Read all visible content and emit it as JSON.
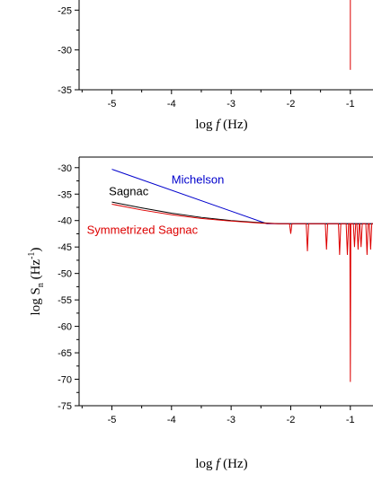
{
  "chart_data": [
    {
      "type": "line",
      "title": "",
      "xlabel": "log f (Hz)",
      "ylabel": "",
      "xlim": [
        -5.55,
        -0.62
      ],
      "ylim": [
        -35,
        -22.6
      ],
      "x_ticks": [
        -5,
        -4,
        -3,
        -2,
        -1
      ],
      "y_ticks": [
        -35,
        -30,
        -25
      ],
      "grid": false,
      "series": [
        {
          "color": "#dd0000",
          "points": [
            [
              -1.0,
              -22.6
            ],
            [
              -1.0,
              -32.5
            ]
          ]
        }
      ]
    },
    {
      "type": "line",
      "title": "",
      "xlabel": "log f (Hz)",
      "ylabel": "log S_n (Hz^-1)",
      "xlim": [
        -5.55,
        -0.62
      ],
      "ylim": [
        -75,
        -28
      ],
      "x_ticks": [
        -5,
        -4,
        -3,
        -2,
        -1
      ],
      "y_ticks": [
        -75,
        -70,
        -65,
        -60,
        -55,
        -50,
        -45,
        -40,
        -35,
        -30
      ],
      "grid": false,
      "series": [
        {
          "name": "Michelson",
          "color": "#0000cc",
          "points": [
            [
              -5,
              -30.3
            ],
            [
              -2.4,
              -40.6
            ],
            [
              -0.62,
              -40.6
            ]
          ]
        },
        {
          "name": "Sagnac",
          "color": "#000000",
          "points": [
            [
              -5,
              -36.5
            ],
            [
              -4.5,
              -37.6
            ],
            [
              -4,
              -38.6
            ],
            [
              -3.5,
              -39.4
            ],
            [
              -3,
              -40.0
            ],
            [
              -2.5,
              -40.4
            ],
            [
              -2.2,
              -40.6
            ],
            [
              -0.62,
              -40.6
            ]
          ]
        },
        {
          "name": "Symmetrized Sagnac",
          "color": "#dd0000",
          "points": [
            [
              -5,
              -36.9
            ],
            [
              -4.5,
              -38.0
            ],
            [
              -4,
              -38.9
            ],
            [
              -3.5,
              -39.6
            ],
            [
              -3,
              -40.1
            ],
            [
              -2.5,
              -40.5
            ],
            [
              -2.2,
              -40.6
            ],
            [
              -0.62,
              -40.6
            ]
          ],
          "dips": [
            {
              "x": -2.0,
              "depth": -42.5
            },
            {
              "x": -1.72,
              "depth": -45.8
            },
            {
              "x": -1.4,
              "depth": -45.5
            },
            {
              "x": -1.18,
              "depth": -46.5
            },
            {
              "x": -1.05,
              "depth": -46.5
            },
            {
              "x": -1.0,
              "depth": -70.5
            },
            {
              "x": -0.93,
              "depth": -45.0
            },
            {
              "x": -0.87,
              "depth": -45.5
            },
            {
              "x": -0.82,
              "depth": -45.0
            },
            {
              "x": -0.72,
              "depth": -46.5
            },
            {
              "x": -0.66,
              "depth": -45.5
            }
          ]
        }
      ]
    }
  ]
}
